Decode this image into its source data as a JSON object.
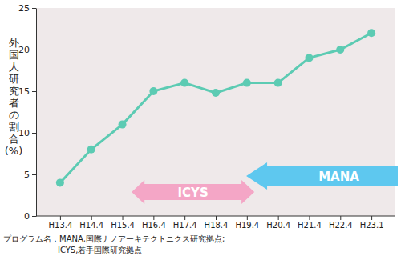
{
  "chart_data": {
    "type": "line",
    "y_label": "外国人研究者の割合(%)",
    "categories": [
      "H13.4",
      "H14.4",
      "H15.4",
      "H16.4",
      "H17.4",
      "H18.4",
      "H19.4",
      "H20.4",
      "H21.4",
      "H22.4",
      "H23.1"
    ],
    "values": [
      4,
      8,
      11,
      15,
      16,
      14.8,
      16,
      16,
      19,
      20,
      22
    ],
    "color": "#5ccbb3",
    "marker": "circle",
    "ylim": [
      0,
      25
    ],
    "yticks": [
      0,
      5,
      10,
      15,
      20,
      25
    ],
    "grid": false,
    "annotations": [
      "ICYS",
      "MANA"
    ],
    "footnote": [
      "プログラム名：MANA,国際ナノアーキテクトニクス研究拠点;",
      "ICYS,若手国際研究拠点"
    ]
  }
}
